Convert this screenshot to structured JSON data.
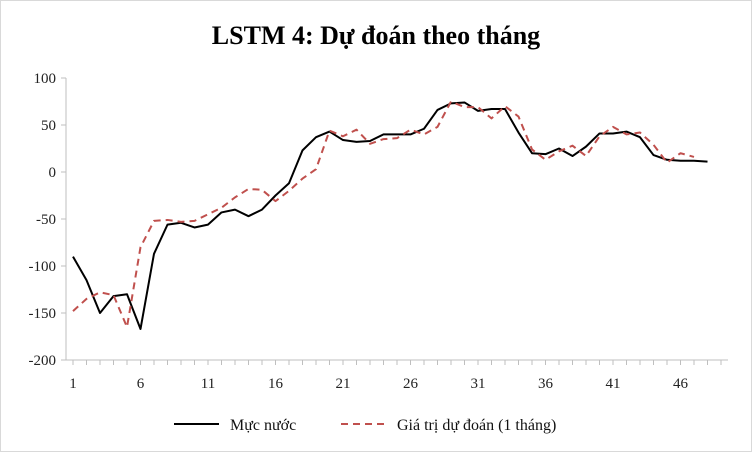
{
  "chart_data": {
    "type": "line",
    "title": "LSTM 4: Dự đoán theo tháng",
    "xlabel": "",
    "ylabel": "",
    "ylim": [
      -200,
      100
    ],
    "y_ticks": [
      100,
      50,
      0,
      -50,
      -100,
      -150,
      -200
    ],
    "x_ticks": [
      1,
      6,
      11,
      16,
      21,
      26,
      31,
      36,
      41,
      46
    ],
    "xlim": [
      1,
      49
    ],
    "grid": false,
    "legend_position": "bottom",
    "x": [
      1,
      2,
      3,
      4,
      5,
      6,
      7,
      8,
      9,
      10,
      11,
      12,
      13,
      14,
      15,
      16,
      17,
      18,
      19,
      20,
      21,
      22,
      23,
      24,
      25,
      26,
      27,
      28,
      29,
      30,
      31,
      32,
      33,
      34,
      35,
      36,
      37,
      38,
      39,
      40,
      41,
      42,
      43,
      44,
      45,
      46,
      47,
      48,
      49
    ],
    "series": [
      {
        "name": "Mực nước",
        "color": "#000000",
        "dash": "solid",
        "values": [
          -90,
          -115,
          -150,
          -132,
          -130,
          -167,
          -87,
          -56,
          -54,
          -59,
          -56,
          -43,
          -40,
          -47,
          -40,
          -25,
          -12,
          23,
          37,
          43,
          34,
          32,
          33,
          40,
          40,
          40,
          46,
          66,
          73,
          74,
          65,
          67,
          67,
          42,
          20,
          19,
          25,
          17,
          27,
          41,
          41,
          43,
          37,
          18,
          13,
          12,
          12,
          11,
          null
        ]
      },
      {
        "name": "Giá trị dự đoán (1 tháng)",
        "color": "#c0504d",
        "dash": "dashed",
        "values": [
          -148,
          -135,
          -128,
          -131,
          -165,
          -80,
          -52,
          -51,
          -53,
          -52,
          -45,
          -38,
          -27,
          -18,
          -19,
          -31,
          -20,
          -7,
          3,
          44,
          38,
          45,
          30,
          35,
          36,
          45,
          40,
          48,
          75,
          69,
          69,
          57,
          70,
          59,
          24,
          13,
          22,
          28,
          17,
          38,
          48,
          40,
          42,
          29,
          10,
          20,
          16,
          null,
          null
        ]
      }
    ]
  }
}
